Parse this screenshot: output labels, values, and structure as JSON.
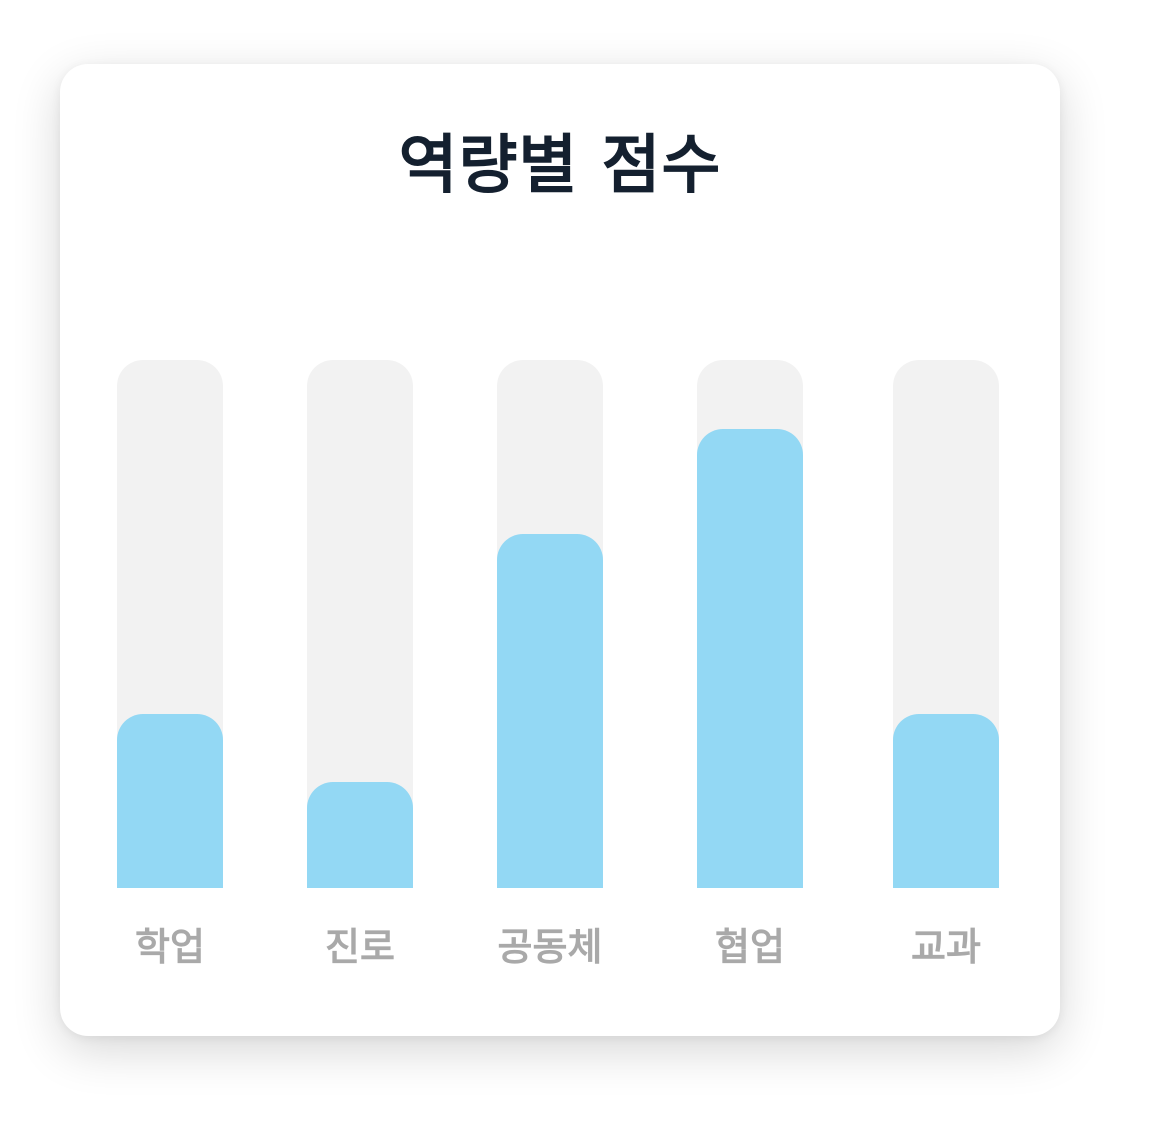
{
  "chart_data": {
    "type": "bar",
    "title": "역량별 점수",
    "categories": [
      "학업",
      "진로",
      "공동체",
      "협업",
      "교과"
    ],
    "values": [
      33,
      20,
      67,
      87,
      33
    ],
    "ylim": [
      0,
      100
    ],
    "xlabel": "",
    "ylabel": "",
    "grid": false,
    "legend": "none"
  },
  "colors": {
    "bar_fill": "#93d8f4",
    "bar_track": "#f2f2f2",
    "title": "#14202f",
    "label": "#a9a9a9"
  }
}
